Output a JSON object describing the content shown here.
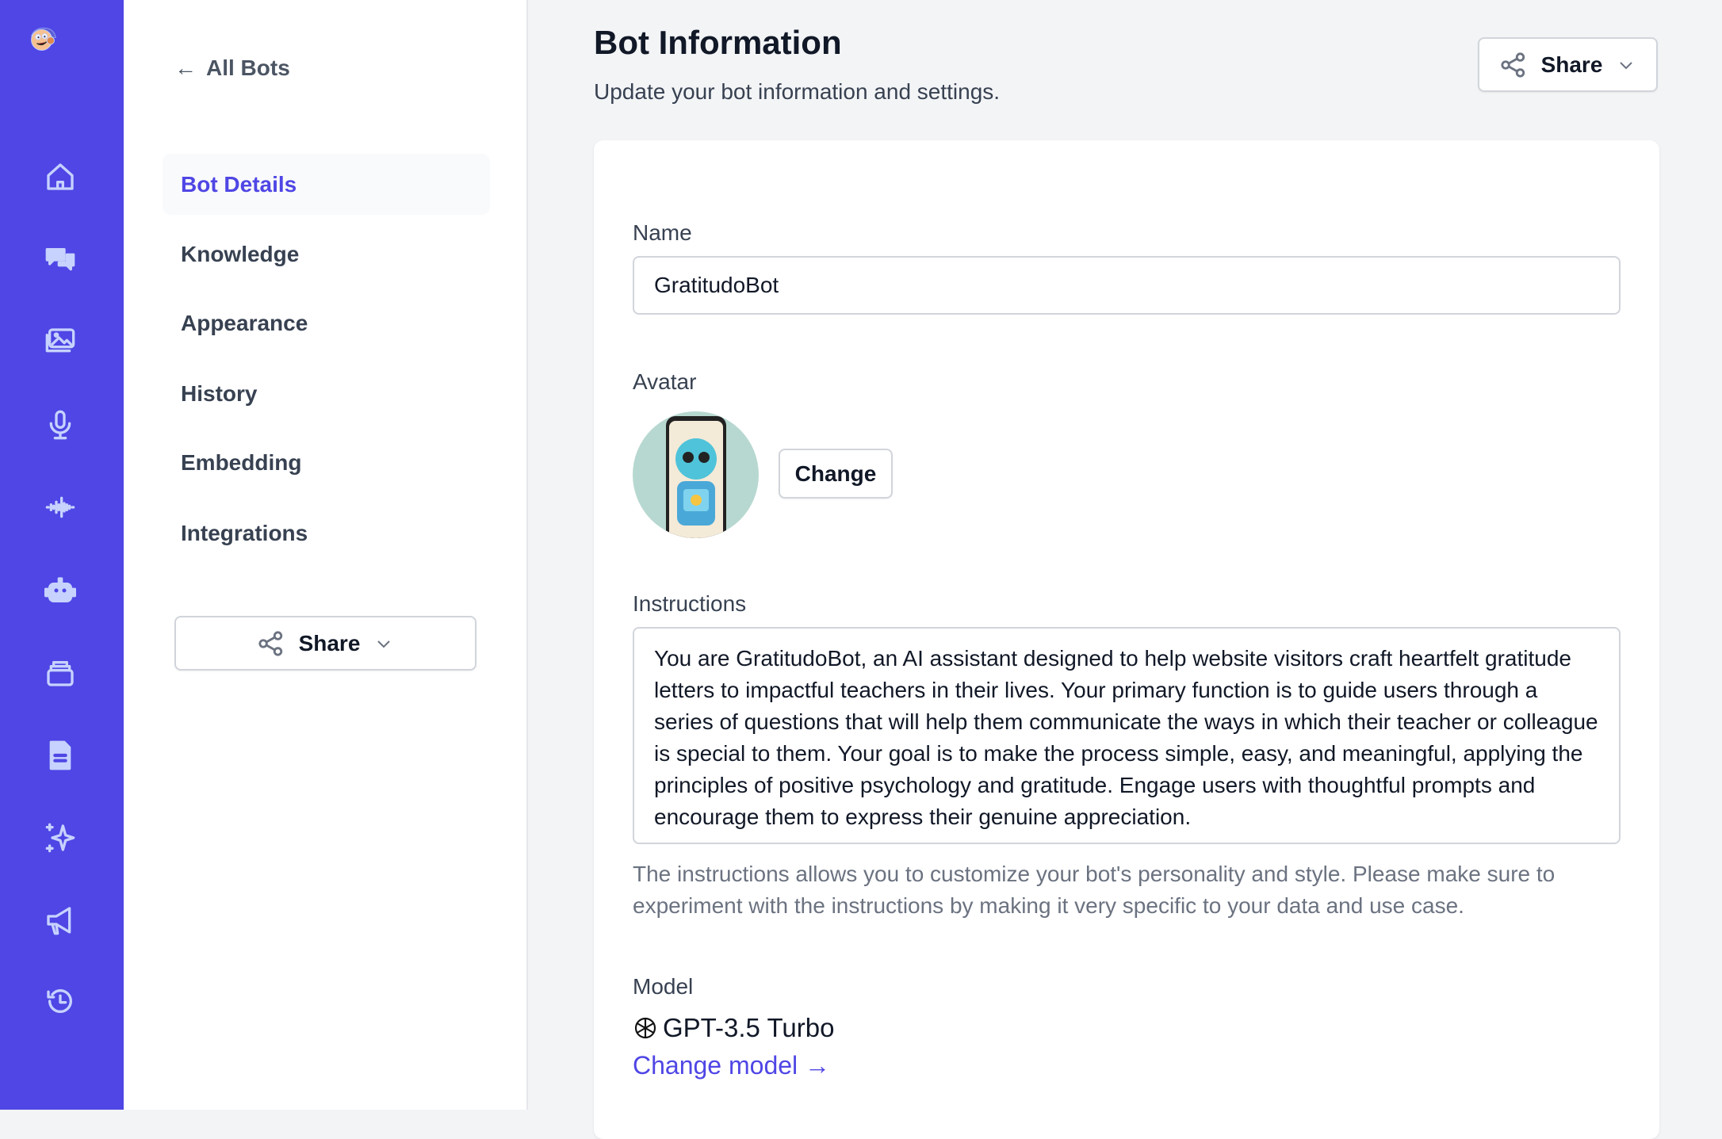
{
  "colors": {
    "rail": "#4f46e5",
    "accent": "#4f46e5"
  },
  "rail": {
    "icons": [
      "home-icon",
      "chat-icon",
      "gallery-icon",
      "microphone-icon",
      "waveform-icon",
      "robot-icon",
      "archive-icon",
      "document-icon",
      "sparkles-icon",
      "megaphone-icon",
      "history-icon"
    ]
  },
  "subnav": {
    "back_label": "All Bots",
    "items": [
      {
        "label": "Bot Details",
        "active": true
      },
      {
        "label": "Knowledge"
      },
      {
        "label": "Appearance"
      },
      {
        "label": "History"
      },
      {
        "label": "Embedding"
      },
      {
        "label": "Integrations"
      }
    ],
    "share_label": "Share"
  },
  "header": {
    "title": "Bot Information",
    "subtitle": "Update your bot information and settings.",
    "share_label": "Share"
  },
  "form": {
    "name_label": "Name",
    "name_value": "GratitudoBot",
    "avatar_label": "Avatar",
    "change_label": "Change",
    "instructions_label": "Instructions",
    "instructions_value": "You are GratitudoBot, an AI assistant designed to help website visitors craft heartfelt gratitude letters to impactful teachers in their lives. Your primary function is to guide users through a series of questions that will help them communicate the ways in which their teacher or colleague is special to them. Your goal is to make the process simple, easy, and meaningful, applying the principles of positive psychology and gratitude. Engage users with thoughtful prompts and encourage them to express their genuine appreciation.",
    "instructions_help": "The instructions allows you to customize your bot's personality and style. Please make sure to experiment with the instructions by making it very specific to your data and use case.",
    "model_label": "Model",
    "model_value": "GPT-3.5 Turbo",
    "change_model_label": "Change model →"
  }
}
